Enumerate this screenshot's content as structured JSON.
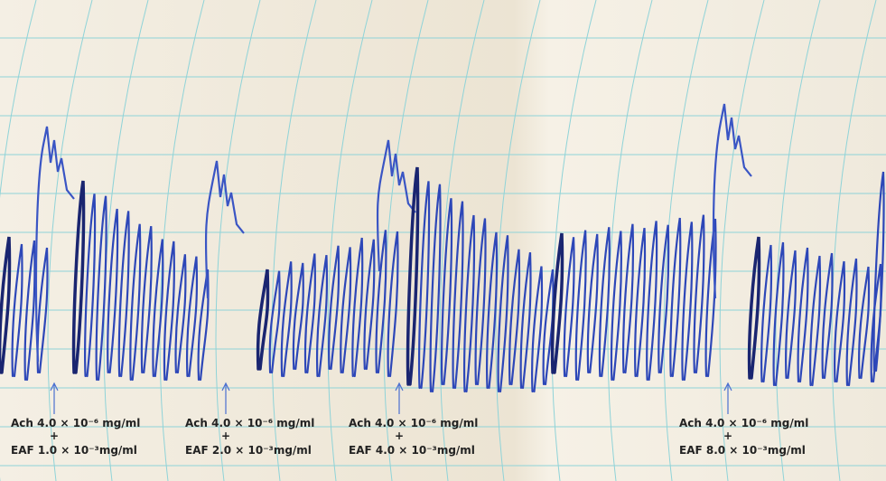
{
  "annotations": [
    {
      "ach": "Ach 4.0 × 10⁻⁶ mg/ml",
      "plus": "+",
      "eaf": "EAF 1.0 × 10⁻³mg/ml"
    },
    {
      "ach": "Ach 4.0 × 10⁻⁶ mg/ml",
      "plus": "+",
      "eaf": "EAF 2.0 × 10⁻³mg/ml"
    },
    {
      "ach": "Ach 4.0 × 10⁻⁶ mg/ml",
      "plus": "+",
      "eaf": "EAF 4.0 × 10⁻³mg/ml"
    },
    {
      "ach": "Ach 4.0 × 10⁻⁶ mg/ml",
      "plus": "+",
      "eaf": "EAF 8.0 × 10⁻³mg/ml"
    }
  ]
}
